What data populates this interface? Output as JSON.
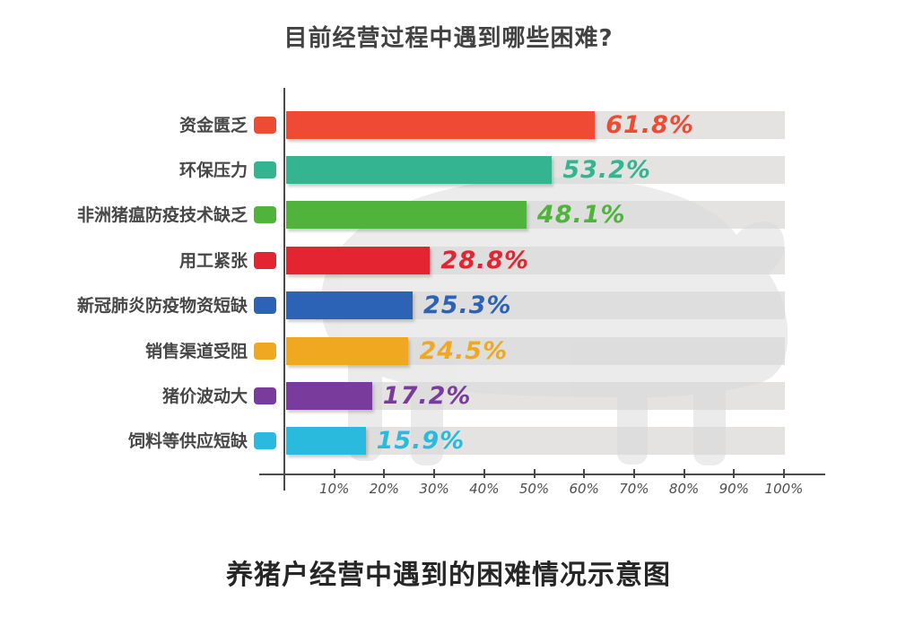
{
  "chart_data": {
    "type": "bar",
    "orientation": "horizontal",
    "title": "目前经营过程中遇到哪些困难?",
    "caption": "养猪户经营中遇到的困难情况示意图",
    "categories": [
      "资金匮乏",
      "环保压力",
      "非洲猪瘟防疫技术缺乏",
      "用工紧张",
      "新冠肺炎防疫物资短缺",
      "销售渠道受阻",
      "猪价波动大",
      "饲料等供应短缺"
    ],
    "values": [
      61.8,
      53.2,
      48.1,
      28.8,
      25.3,
      24.5,
      17.2,
      15.9
    ],
    "value_labels": [
      "61.8%",
      "53.2%",
      "48.1%",
      "28.8%",
      "25.3%",
      "24.5%",
      "17.2%",
      "15.9%"
    ],
    "bar_colors": [
      "#ef4a33",
      "#35b492",
      "#50b43c",
      "#e52431",
      "#2c63b7",
      "#efa81f",
      "#7a3c9c",
      "#2abadd"
    ],
    "xlim": [
      0,
      100
    ],
    "x_tick_labels": [
      "10%",
      "20%",
      "30%",
      "40%",
      "50%",
      "60%",
      "70%",
      "80%",
      "90%",
      "100%"
    ],
    "grid": false,
    "legend_position": "none",
    "track_color": "#e4e3e2",
    "axis_color": "#4a4a4a",
    "tick_label_color": "#4f4f4f",
    "title_color": "#424242",
    "caption_color": "#262626",
    "watermark": "pig-silhouette",
    "watermark_color": "#d9d9d9"
  }
}
